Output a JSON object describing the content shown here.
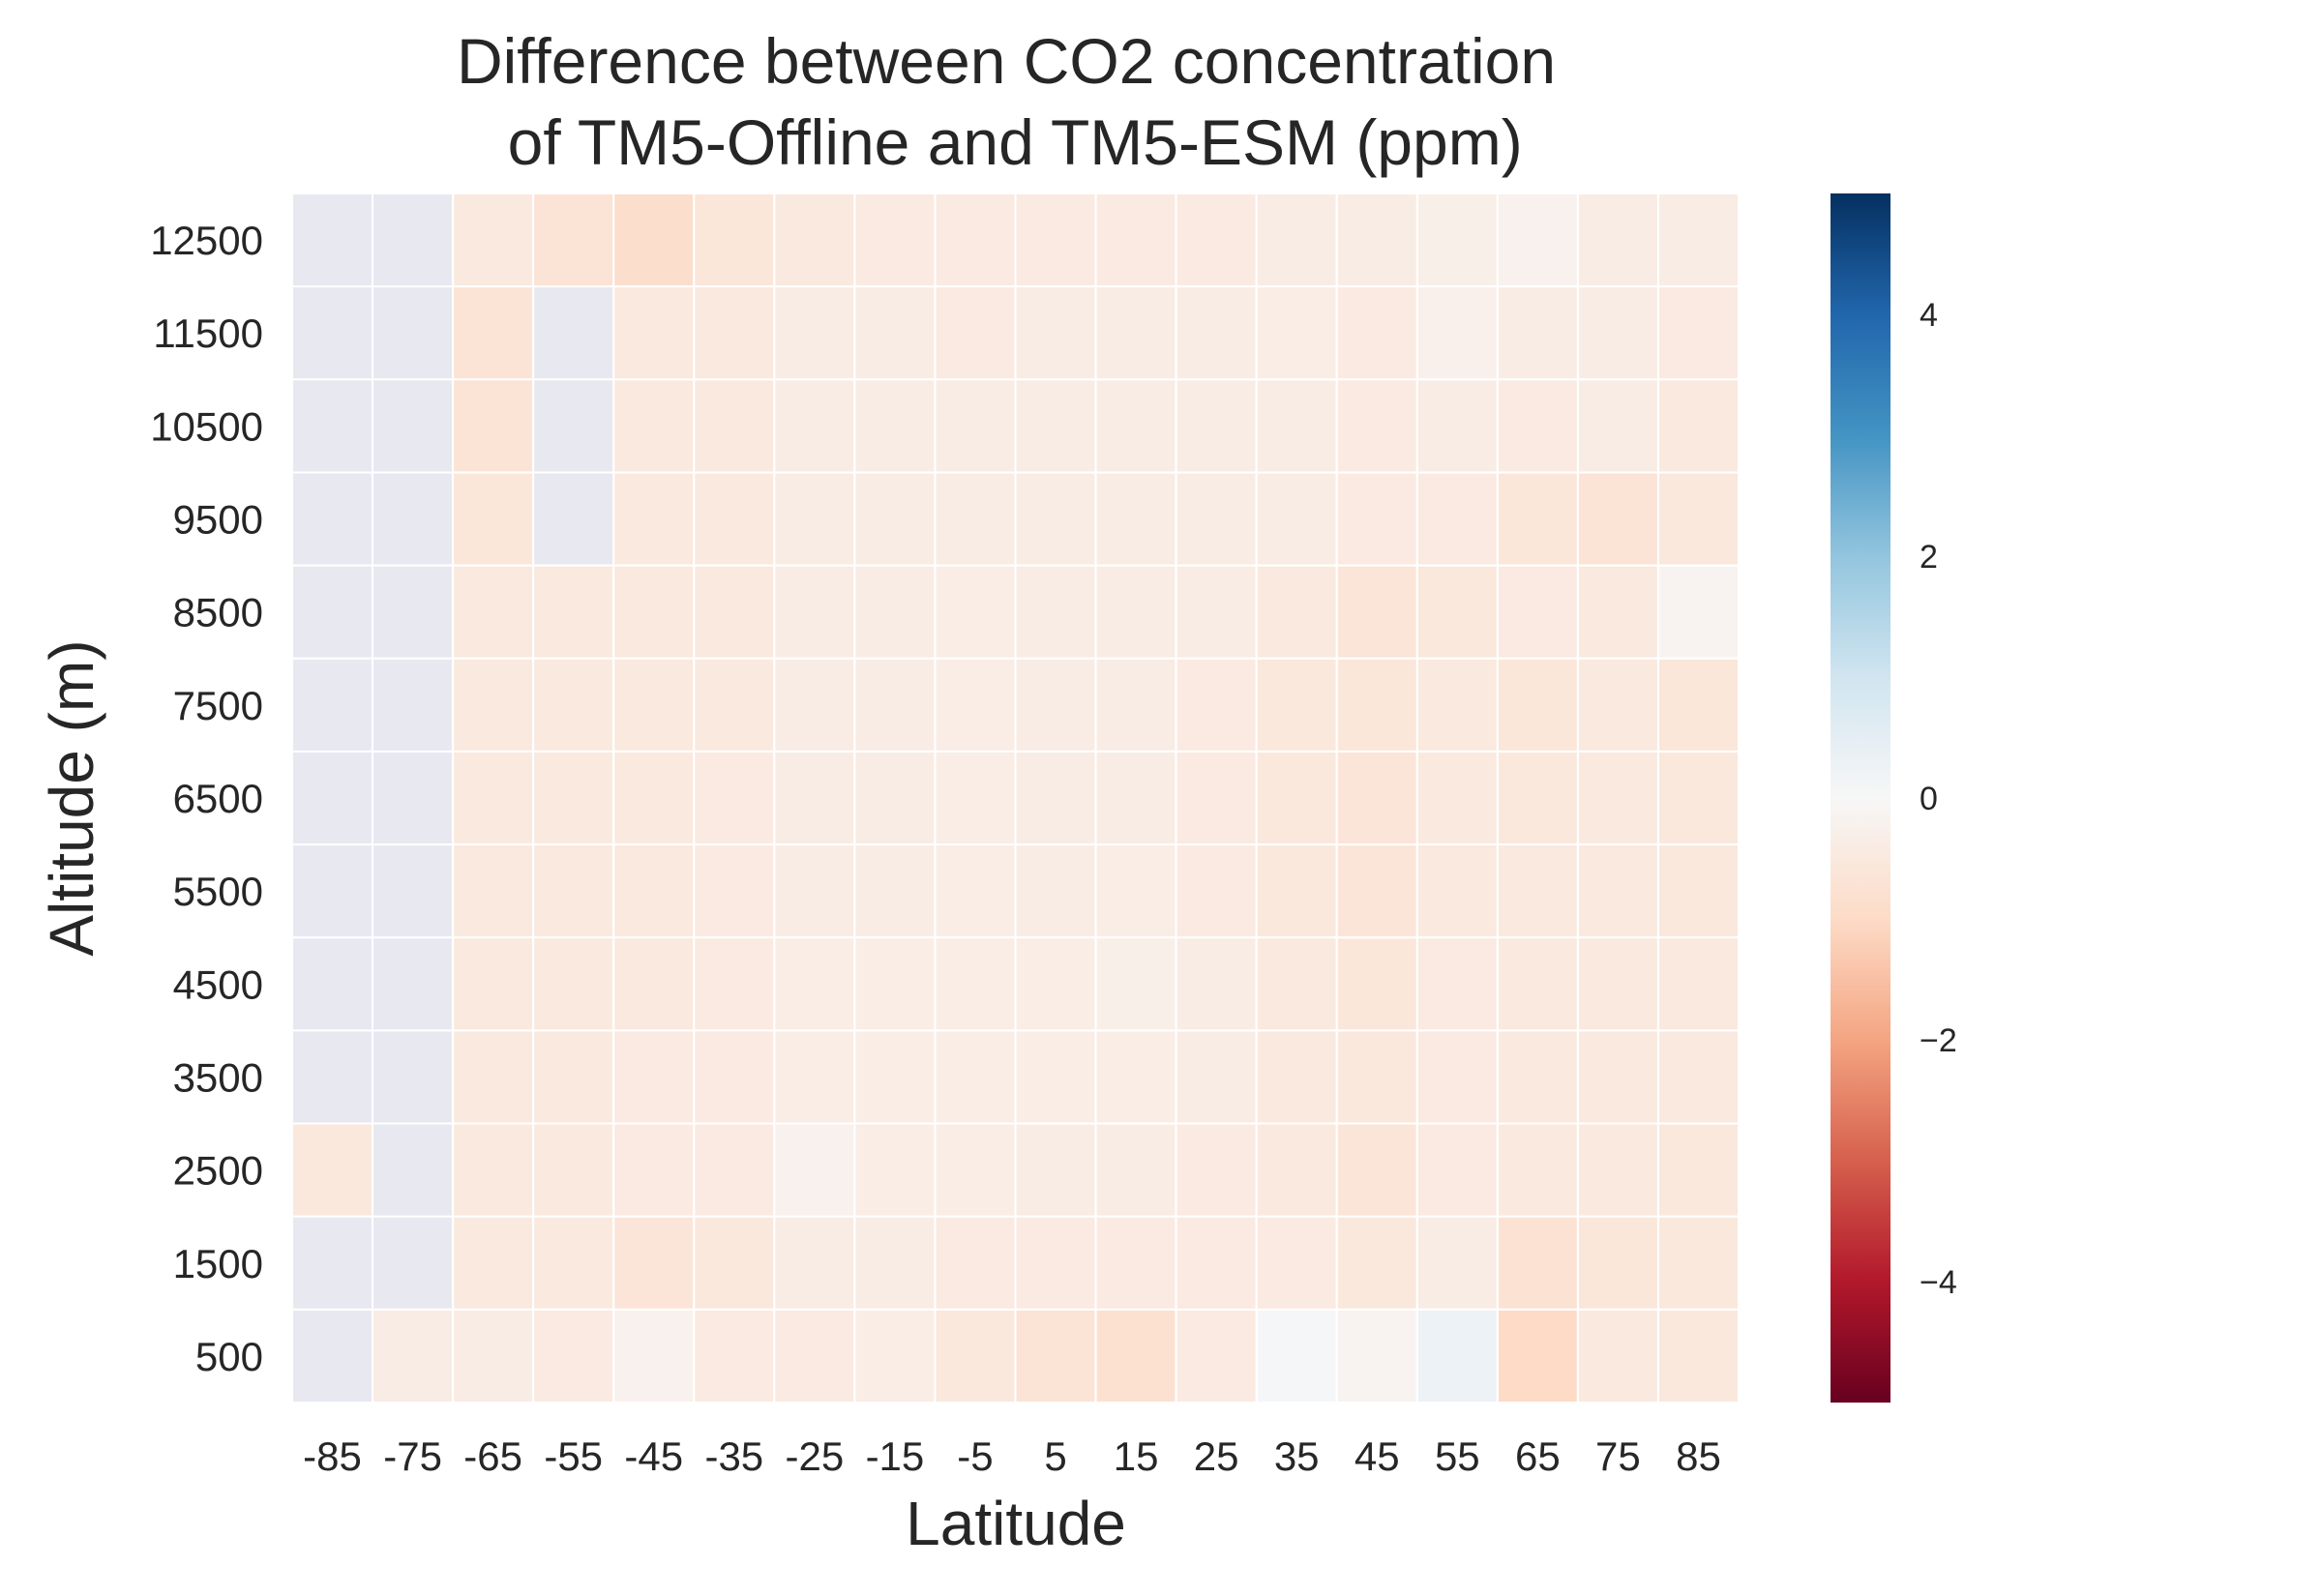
{
  "chart_data": {
    "type": "heatmap",
    "title_lines": [
      "Difference between CO2 concentration",
      " of TM5-Offline and TM5-ESM (ppm)"
    ],
    "xlabel": "Latitude",
    "ylabel": "Altitude (m)",
    "x_categories": [
      "-85",
      "-75",
      "-65",
      "-55",
      "-45",
      "-35",
      "-25",
      "-15",
      "-5",
      "5",
      "15",
      "25",
      "35",
      "45",
      "55",
      "65",
      "75",
      "85"
    ],
    "y_categories": [
      "12500",
      "11500",
      "10500",
      "9500",
      "8500",
      "7500",
      "6500",
      "5500",
      "4500",
      "3500",
      "2500",
      "1500",
      "500"
    ],
    "values": [
      [
        null,
        null,
        -0.5,
        -0.7,
        -0.9,
        -0.6,
        -0.5,
        -0.45,
        -0.45,
        -0.45,
        -0.45,
        -0.45,
        -0.4,
        -0.4,
        -0.3,
        -0.2,
        -0.4,
        -0.4
      ],
      [
        null,
        null,
        -0.7,
        null,
        -0.5,
        -0.5,
        -0.4,
        -0.4,
        -0.45,
        -0.4,
        -0.4,
        -0.4,
        -0.35,
        -0.45,
        -0.25,
        -0.4,
        -0.4,
        -0.45
      ],
      [
        null,
        null,
        -0.7,
        null,
        -0.5,
        -0.5,
        -0.4,
        -0.4,
        -0.4,
        -0.4,
        -0.4,
        -0.4,
        -0.4,
        -0.45,
        -0.4,
        -0.45,
        -0.4,
        -0.5
      ],
      [
        null,
        null,
        -0.6,
        null,
        -0.5,
        -0.5,
        -0.4,
        -0.4,
        -0.4,
        -0.4,
        -0.4,
        -0.4,
        -0.4,
        -0.45,
        -0.45,
        -0.6,
        -0.7,
        -0.55
      ],
      [
        null,
        null,
        -0.5,
        -0.5,
        -0.5,
        -0.5,
        -0.4,
        -0.4,
        -0.35,
        -0.4,
        -0.4,
        -0.4,
        -0.5,
        -0.65,
        -0.55,
        -0.45,
        -0.5,
        -0.15
      ],
      [
        null,
        null,
        -0.5,
        -0.5,
        -0.5,
        -0.5,
        -0.4,
        -0.4,
        -0.35,
        -0.4,
        -0.4,
        -0.45,
        -0.55,
        -0.6,
        -0.5,
        -0.6,
        -0.5,
        -0.6
      ],
      [
        null,
        null,
        -0.5,
        -0.5,
        -0.5,
        -0.45,
        -0.4,
        -0.4,
        -0.35,
        -0.4,
        -0.4,
        -0.45,
        -0.55,
        -0.65,
        -0.5,
        -0.55,
        -0.5,
        -0.55
      ],
      [
        null,
        null,
        -0.5,
        -0.5,
        -0.5,
        -0.45,
        -0.4,
        -0.4,
        -0.35,
        -0.4,
        -0.35,
        -0.45,
        -0.55,
        -0.65,
        -0.5,
        -0.5,
        -0.5,
        -0.55
      ],
      [
        null,
        null,
        -0.5,
        -0.5,
        -0.5,
        -0.45,
        -0.35,
        -0.35,
        -0.35,
        -0.35,
        -0.3,
        -0.4,
        -0.5,
        -0.6,
        -0.45,
        -0.5,
        -0.5,
        -0.5
      ],
      [
        null,
        null,
        -0.5,
        -0.5,
        -0.45,
        -0.45,
        -0.35,
        -0.35,
        -0.35,
        -0.35,
        -0.35,
        -0.4,
        -0.5,
        -0.55,
        -0.45,
        -0.5,
        -0.5,
        -0.5
      ],
      [
        -0.55,
        null,
        -0.5,
        -0.5,
        -0.45,
        -0.45,
        -0.2,
        -0.35,
        -0.35,
        -0.4,
        -0.4,
        -0.45,
        -0.5,
        -0.65,
        -0.45,
        -0.5,
        -0.5,
        -0.55
      ],
      [
        null,
        null,
        -0.5,
        -0.5,
        -0.65,
        -0.55,
        -0.4,
        -0.4,
        -0.45,
        -0.45,
        -0.45,
        -0.45,
        -0.45,
        -0.55,
        -0.4,
        -0.75,
        -0.6,
        -0.55
      ],
      [
        null,
        -0.4,
        -0.4,
        -0.45,
        -0.2,
        -0.45,
        -0.45,
        -0.35,
        -0.55,
        -0.7,
        -0.8,
        -0.45,
        0.05,
        -0.15,
        0.3,
        -1.0,
        -0.5,
        -0.55
      ]
    ],
    "missing_color": "#e8e8f0",
    "colormap": "RdBu",
    "vmin": -5,
    "vmax": 5,
    "colorbar_ticks": [
      4,
      2,
      0,
      -2,
      -4
    ],
    "colorbar_tick_labels": [
      "4",
      "2",
      "0",
      "−2",
      "−4"
    ],
    "grid": "white cell borders",
    "legend": "colorbar-right"
  }
}
